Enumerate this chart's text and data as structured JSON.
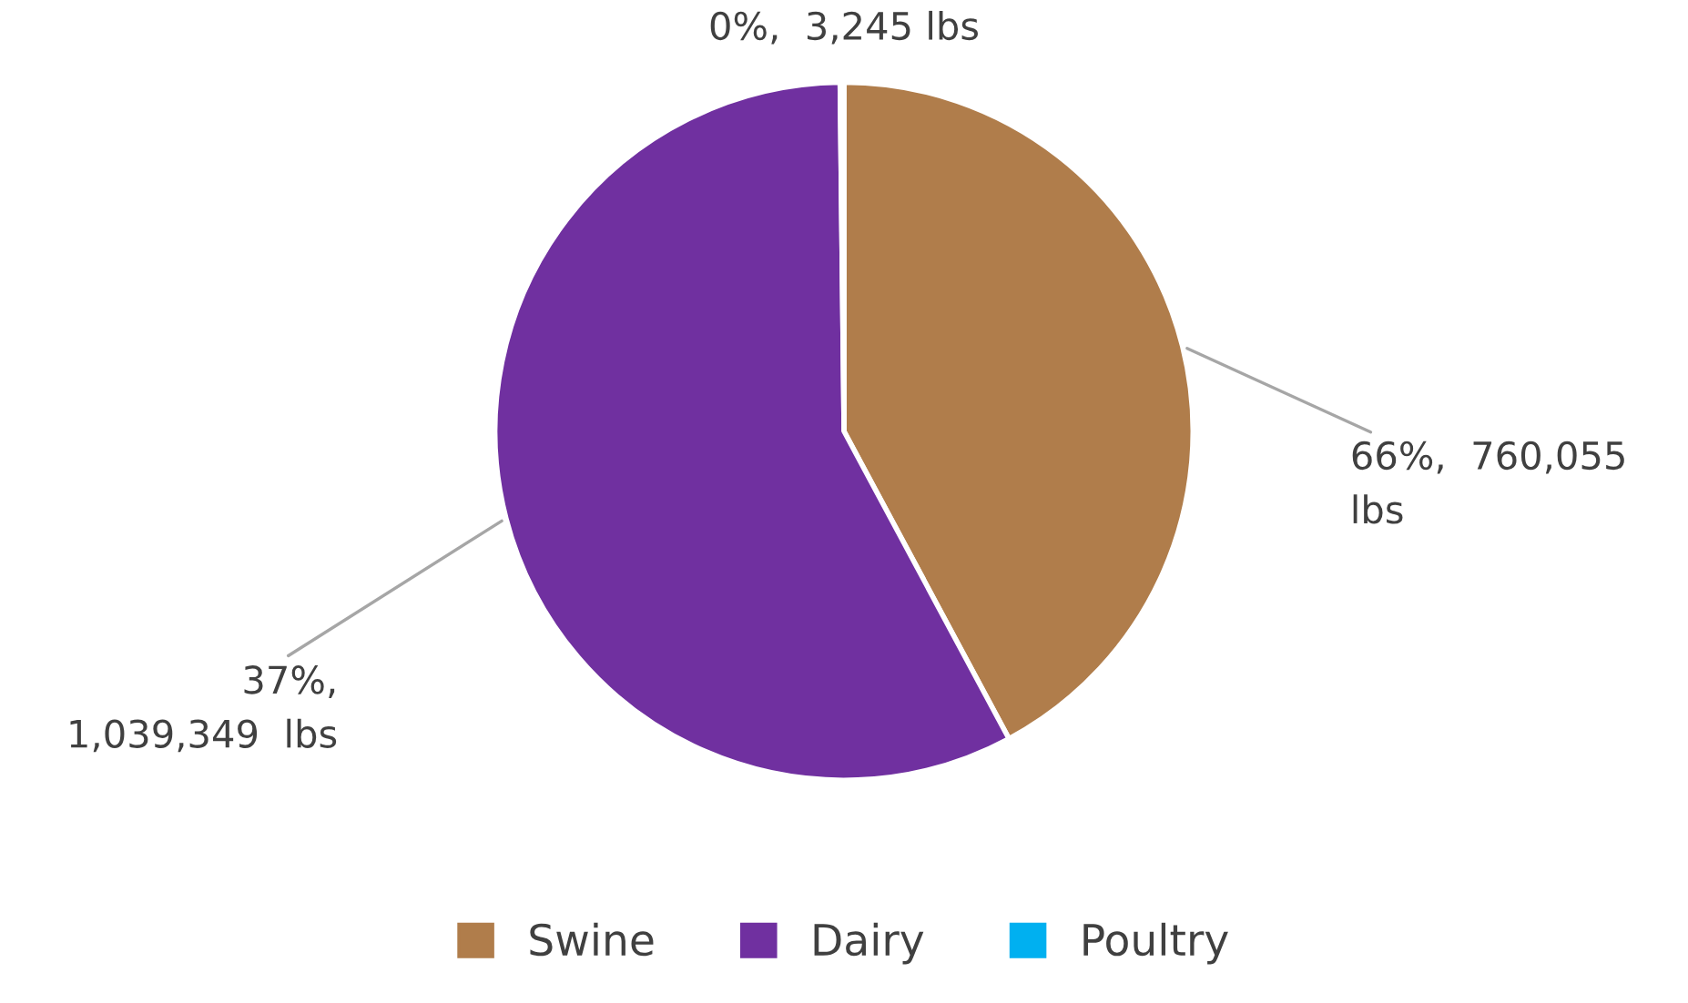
{
  "chart_data": {
    "type": "pie",
    "categories": [
      "Swine",
      "Dairy",
      "Poultry"
    ],
    "values": [
      760055,
      1039349,
      3245
    ],
    "colors": [
      "#b07d4b",
      "#7030a0",
      "#00b0f0"
    ],
    "value_labels": [
      "66%,  760,055\nlbs",
      "37%,\n1,039,349  lbs",
      "0%,  3,245 lbs"
    ],
    "legend": "bottom"
  }
}
